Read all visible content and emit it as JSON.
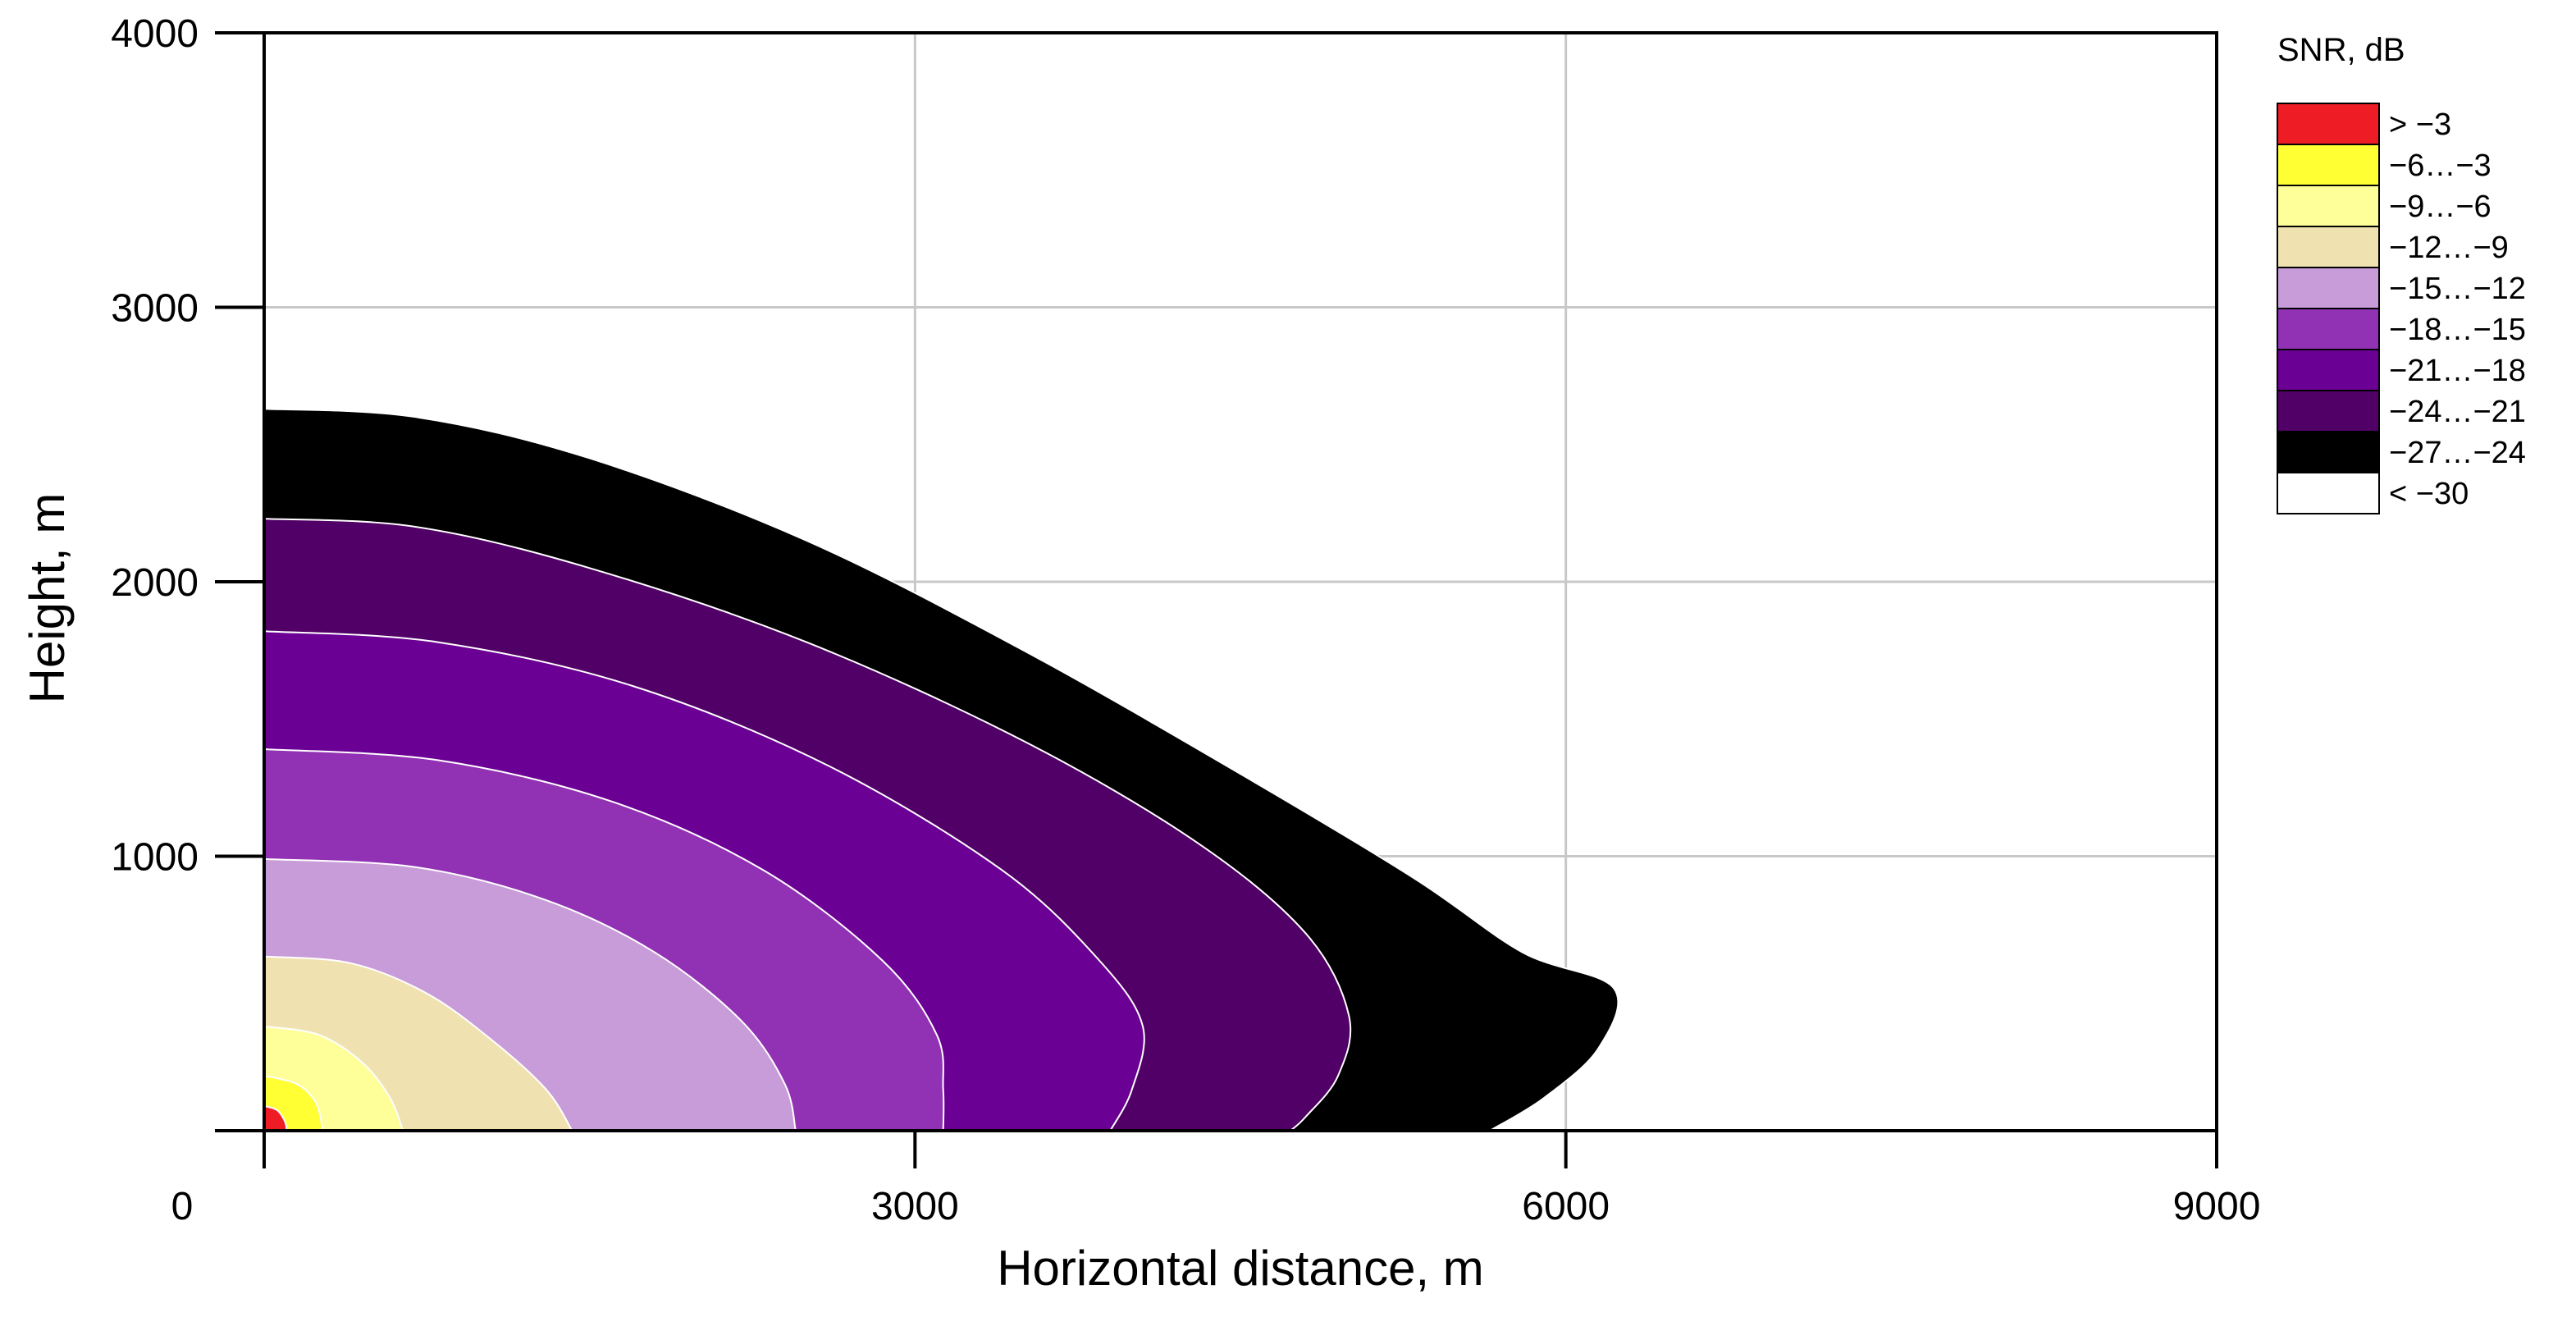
{
  "chart_data": {
    "type": "area",
    "title": "",
    "xlabel": "Horizontal distance, m",
    "ylabel": "Height, m",
    "xlim": [
      0,
      9000
    ],
    "ylim": [
      0,
      4000
    ],
    "xticks": [
      0,
      3000,
      6000,
      9000
    ],
    "yticks": [
      1000,
      2000,
      3000,
      4000
    ],
    "grid": true,
    "legend_position": "right",
    "legend_title": "SNR, dB",
    "levels": [
      {
        "label": "> −3",
        "color": "#ee1c25"
      },
      {
        "label": "−6…−3",
        "color": "#ffff33"
      },
      {
        "label": "−9…−6",
        "color": "#ffff99"
      },
      {
        "label": "−12…−9",
        "color": "#f0e2b0"
      },
      {
        "label": "−15…−12",
        "color": "#c89cd8"
      },
      {
        "label": "−18…−15",
        "color": "#9132b4"
      },
      {
        "label": "−21…−18",
        "color": "#6b0094"
      },
      {
        "label": "−24…−21",
        "color": "#500066"
      },
      {
        "label": "−27…−24",
        "color": "#000000"
      },
      {
        "label": "< −30",
        "color": "#ffffff"
      }
    ],
    "contours": [
      {
        "band": "−27…−24",
        "points": [
          [
            0,
            2630
          ],
          [
            700,
            2600
          ],
          [
            1500,
            2450
          ],
          [
            2500,
            2150
          ],
          [
            3500,
            1750
          ],
          [
            4500,
            1300
          ],
          [
            5300,
            920
          ],
          [
            5800,
            650
          ],
          [
            6220,
            520
          ],
          [
            6150,
            300
          ],
          [
            5900,
            120
          ],
          [
            5650,
            0
          ],
          [
            0,
            0
          ]
        ]
      },
      {
        "band": "−24…−21",
        "points": [
          [
            0,
            2230
          ],
          [
            700,
            2200
          ],
          [
            1500,
            2050
          ],
          [
            2500,
            1780
          ],
          [
            3500,
            1420
          ],
          [
            4300,
            1050
          ],
          [
            4800,
            720
          ],
          [
            5000,
            420
          ],
          [
            4950,
            200
          ],
          [
            4800,
            50
          ],
          [
            4730,
            0
          ],
          [
            0,
            0
          ]
        ]
      },
      {
        "band": "−21…−18",
        "points": [
          [
            0,
            1820
          ],
          [
            800,
            1780
          ],
          [
            1700,
            1620
          ],
          [
            2600,
            1330
          ],
          [
            3400,
            950
          ],
          [
            3850,
            620
          ],
          [
            4050,
            380
          ],
          [
            4000,
            150
          ],
          [
            3900,
            0
          ],
          [
            0,
            0
          ]
        ]
      },
      {
        "band": "−18…−15",
        "points": [
          [
            0,
            1390
          ],
          [
            800,
            1350
          ],
          [
            1600,
            1200
          ],
          [
            2300,
            950
          ],
          [
            2850,
            620
          ],
          [
            3100,
            350
          ],
          [
            3130,
            150
          ],
          [
            3130,
            0
          ],
          [
            0,
            0
          ]
        ]
      },
      {
        "band": "−15…−12",
        "points": [
          [
            0,
            990
          ],
          [
            700,
            960
          ],
          [
            1300,
            840
          ],
          [
            1800,
            650
          ],
          [
            2200,
            400
          ],
          [
            2400,
            170
          ],
          [
            2450,
            0
          ],
          [
            0,
            0
          ]
        ]
      },
      {
        "band": "−12…−9",
        "points": [
          [
            0,
            635
          ],
          [
            400,
            610
          ],
          [
            750,
            500
          ],
          [
            1050,
            330
          ],
          [
            1300,
            150
          ],
          [
            1420,
            0
          ],
          [
            0,
            0
          ]
        ]
      },
      {
        "band": "−9…−6",
        "points": [
          [
            0,
            380
          ],
          [
            250,
            350
          ],
          [
            450,
            250
          ],
          [
            580,
            120
          ],
          [
            640,
            0
          ],
          [
            0,
            0
          ]
        ]
      },
      {
        "band": "−6…−3",
        "points": [
          [
            0,
            200
          ],
          [
            150,
            170
          ],
          [
            240,
            100
          ],
          [
            270,
            0
          ],
          [
            0,
            0
          ]
        ]
      },
      {
        "band": "> −3",
        "points": [
          [
            0,
            90
          ],
          [
            60,
            75
          ],
          [
            95,
            35
          ],
          [
            105,
            0
          ],
          [
            0,
            0
          ]
        ]
      }
    ]
  }
}
